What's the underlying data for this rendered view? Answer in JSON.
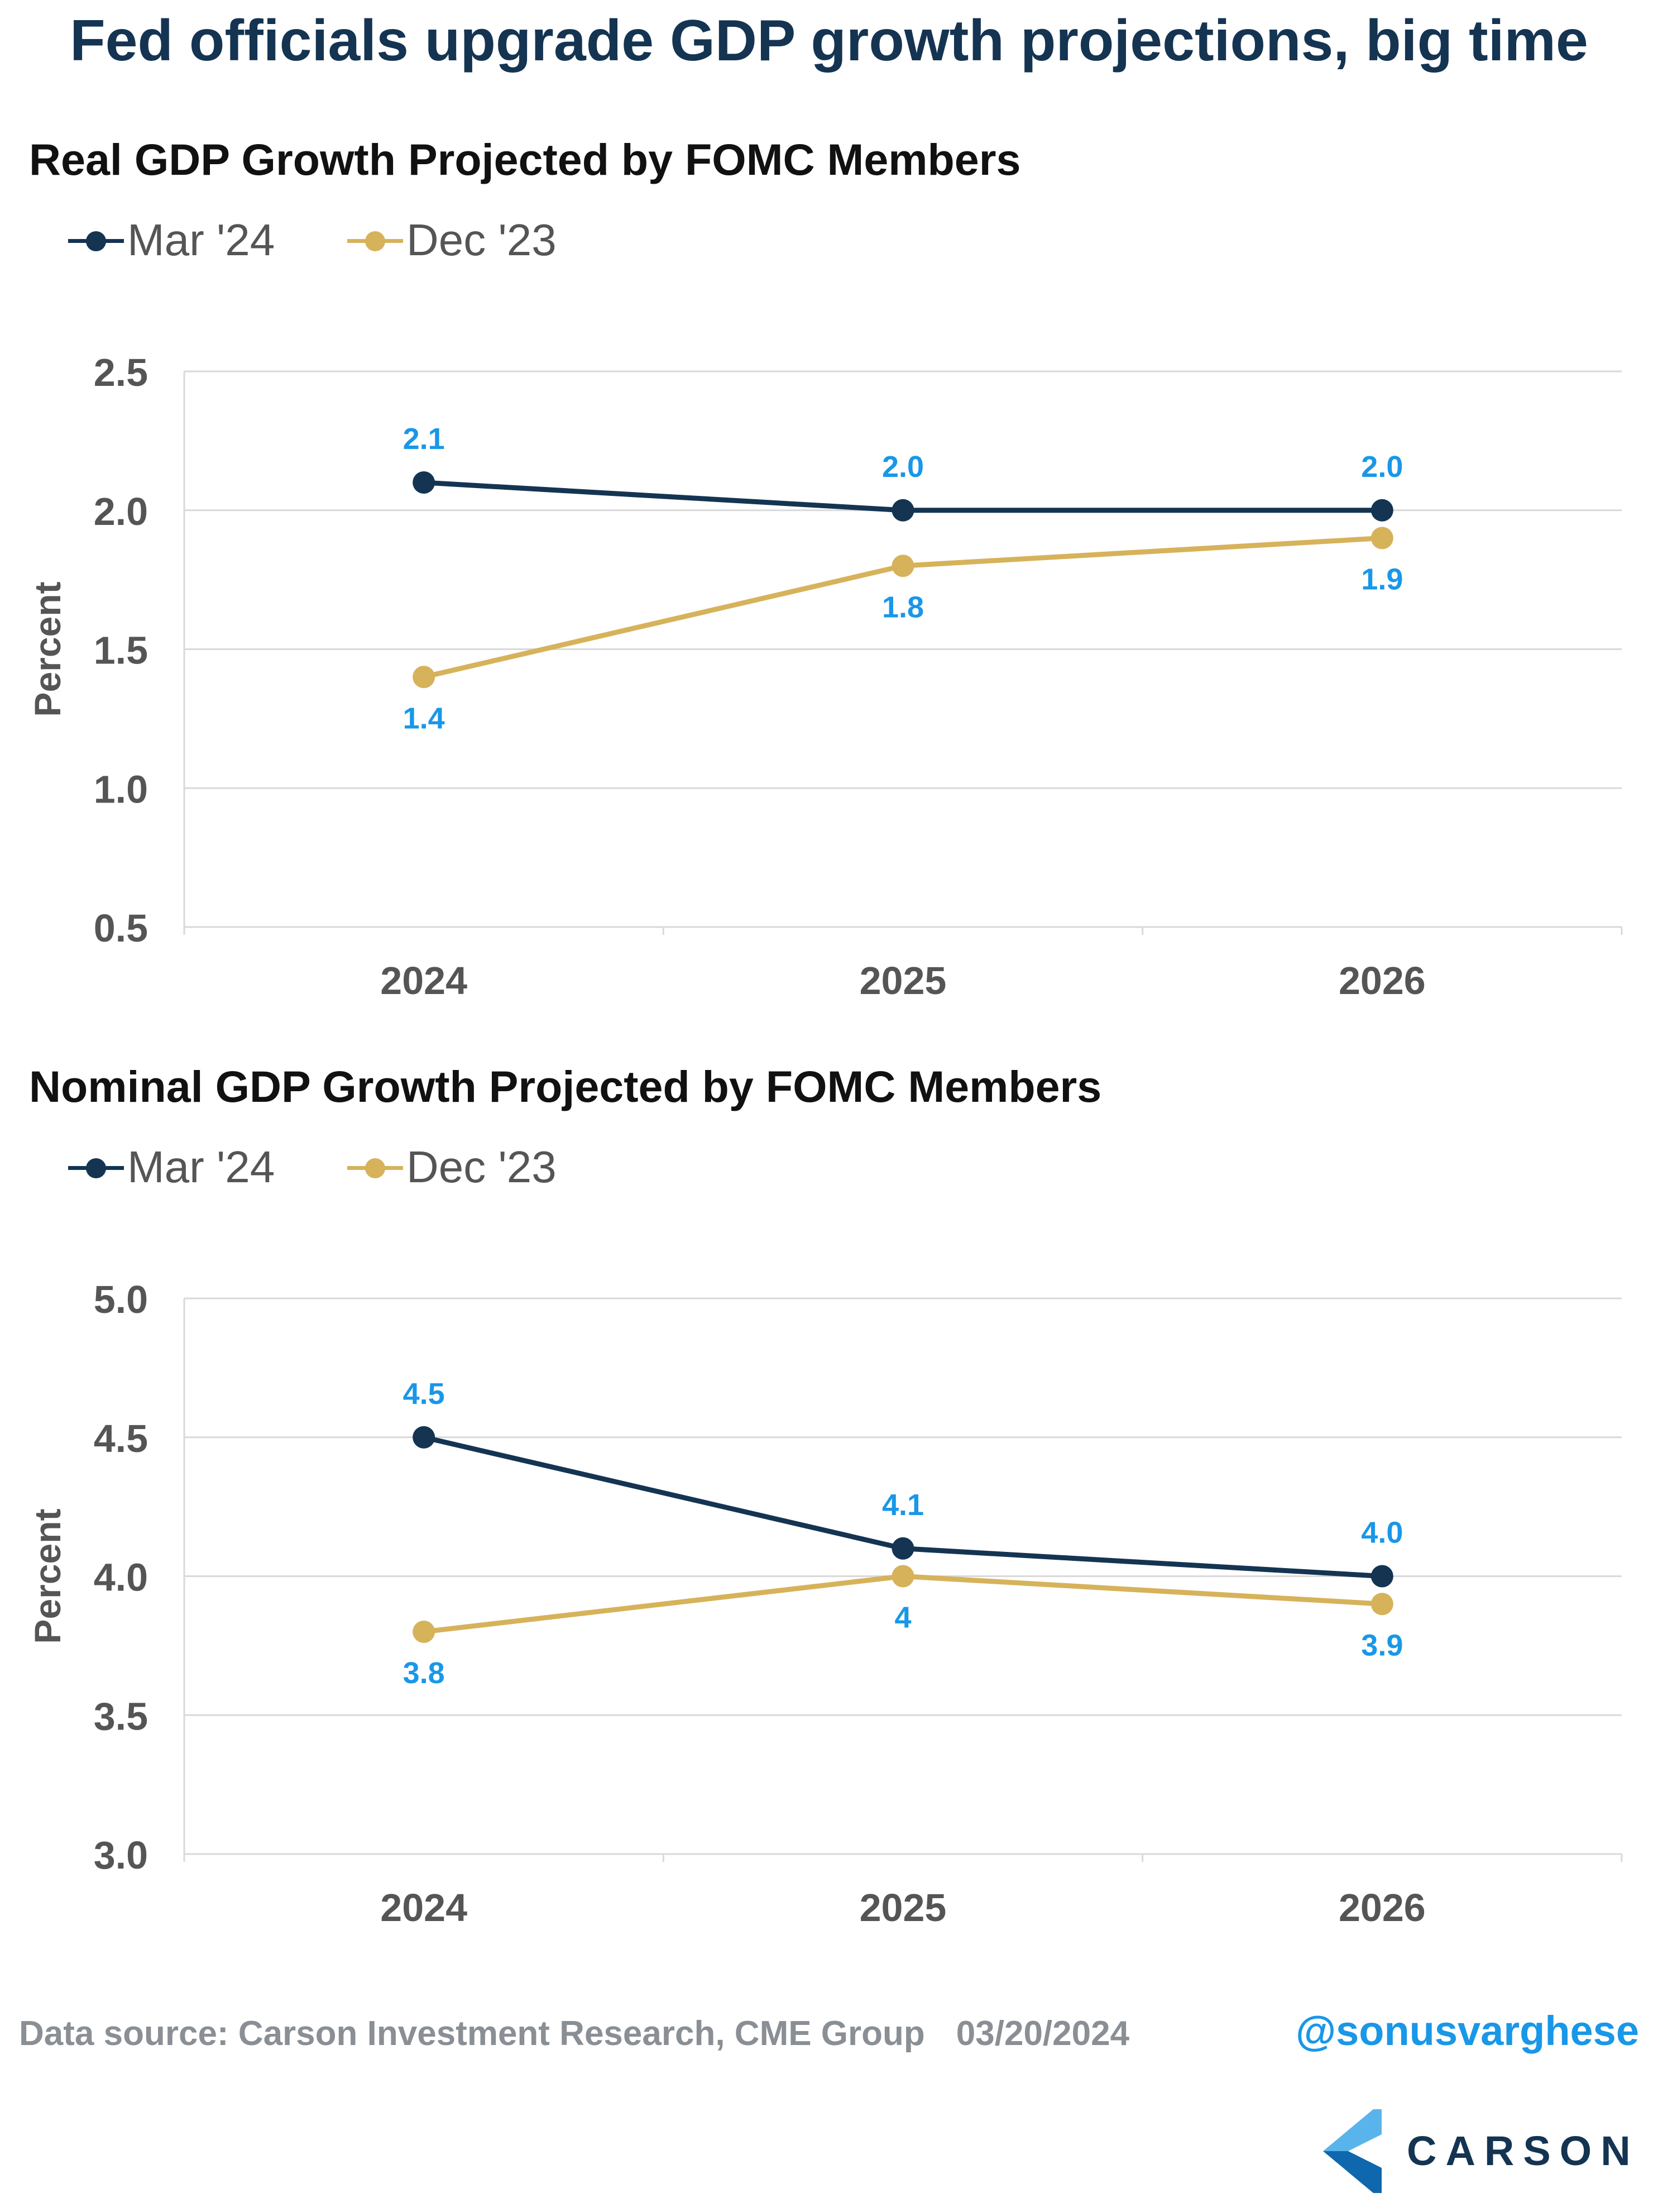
{
  "headline": "Fed officials upgrade GDP growth projections, big time",
  "colors": {
    "series_mar24": "#143452",
    "series_dec23": "#d6b25a",
    "data_label": "#1997e8",
    "gridline": "#d9d9d9",
    "axis_text": "#555555",
    "handle": "#1997e8",
    "logo_light": "#5ab4ec",
    "logo_dark": "#0f67ad"
  },
  "chart_data": [
    {
      "type": "line",
      "title": "Real GDP Growth Projected by FOMC Members",
      "ylabel": "Percent",
      "xlabel": "",
      "categories": [
        "2024",
        "2025",
        "2026"
      ],
      "ylim": [
        0.5,
        2.5
      ],
      "yticks": [
        "0.5",
        "1.0",
        "1.5",
        "2.0",
        "2.5"
      ],
      "grid": true,
      "legend_position": "top-left",
      "series": [
        {
          "name": "Mar '24",
          "color": "#143452",
          "values": [
            2.1,
            2.0,
            2.0
          ],
          "labels": [
            "2.1",
            "2.0",
            "2.0"
          ],
          "label_position": "above"
        },
        {
          "name": "Dec '23",
          "color": "#d6b25a",
          "values": [
            1.4,
            1.8,
            1.9
          ],
          "labels": [
            "1.4",
            "1.8",
            "1.9"
          ],
          "label_position": "below"
        }
      ]
    },
    {
      "type": "line",
      "title": "Nominal GDP Growth Projected by FOMC Members",
      "ylabel": "Percent",
      "xlabel": "",
      "categories": [
        "2024",
        "2025",
        "2026"
      ],
      "ylim": [
        3.0,
        5.0
      ],
      "yticks": [
        "3.0",
        "3.5",
        "4.0",
        "4.5",
        "5.0"
      ],
      "grid": true,
      "legend_position": "top-left",
      "series": [
        {
          "name": "Mar '24",
          "color": "#143452",
          "values": [
            4.5,
            4.1,
            4.0
          ],
          "labels": [
            "4.5",
            "4.1",
            "4.0"
          ],
          "label_position": "above"
        },
        {
          "name": "Dec '23",
          "color": "#d6b25a",
          "values": [
            3.8,
            4.0,
            3.9
          ],
          "labels": [
            "3.8",
            "4",
            "3.9"
          ],
          "label_position": "below"
        }
      ]
    }
  ],
  "footer": {
    "source": "Data source: Carson Investment Research, CME Group",
    "date": "03/20/2024",
    "handle": "@sonusvarghese"
  },
  "logo": {
    "text": "CARSON",
    "icon": "carson-chevron-logo"
  }
}
